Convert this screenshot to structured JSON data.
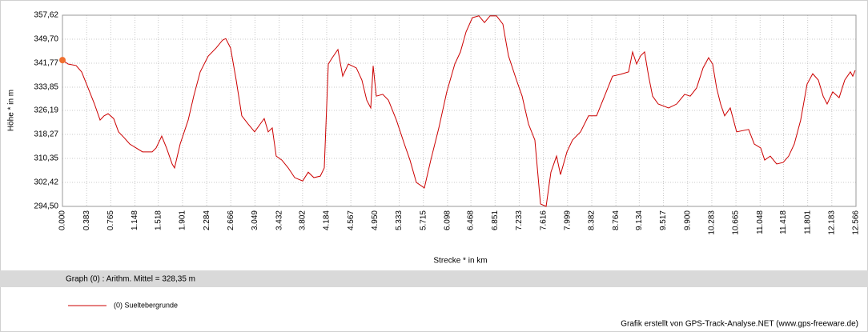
{
  "chart_data": {
    "type": "line",
    "ylabel": "Höhe *  in  m",
    "xlabel": "Strecke *  in  km",
    "annotation": "Graph (0) :  Arithm. Mittel = 328,35 m",
    "credit": "Grafik erstellt von GPS-Track-Analyse.NET (www.gps-freeware.de)",
    "grid": true,
    "legend": "bottom-left",
    "xlim": [
      0,
      12.566
    ],
    "ylim": [
      294.5,
      357.62
    ],
    "yticks": [
      {
        "value": 294.5,
        "label": "294,50"
      },
      {
        "value": 302.42,
        "label": "302,42"
      },
      {
        "value": 310.35,
        "label": "310,35"
      },
      {
        "value": 318.27,
        "label": "318,27"
      },
      {
        "value": 326.19,
        "label": "326,19"
      },
      {
        "value": 333.85,
        "label": "333,85"
      },
      {
        "value": 341.77,
        "label": "341,77"
      },
      {
        "value": 349.7,
        "label": "349,70"
      },
      {
        "value": 357.62,
        "label": "357,62"
      }
    ],
    "xticks": [
      {
        "value": 0,
        "label": "0.000"
      },
      0.383,
      0.765,
      1.148,
      1.518,
      1.901,
      2.284,
      2.666,
      3.049,
      3.432,
      3.802,
      4.184,
      4.567,
      {
        "value": 4.95,
        "label": "4.950"
      },
      5.333,
      5.715,
      6.098,
      6.468,
      6.851,
      7.233,
      7.616,
      7.999,
      8.382,
      8.764,
      9.134,
      9.517,
      {
        "value": 9.9,
        "label": "9.900"
      },
      10.283,
      10.665,
      11.048,
      11.418,
      11.801,
      12.183,
      12.566
    ],
    "x": [
      0,
      0.089,
      0.216,
      0.304,
      0.406,
      0.507,
      0.596,
      0.659,
      0.723,
      0.811,
      0.888,
      0.976,
      1.065,
      1.166,
      1.268,
      1.42,
      1.483,
      1.572,
      1.648,
      1.737,
      1.775,
      1.864,
      1.991,
      2.079,
      2.181,
      2.308,
      2.434,
      2.536,
      2.586,
      2.662,
      2.751,
      2.84,
      2.941,
      3.043,
      3.132,
      3.195,
      3.258,
      3.322,
      3.385,
      3.474,
      3.575,
      3.677,
      3.804,
      3.892,
      3.981,
      4.083,
      4.146,
      4.21,
      4.273,
      4.362,
      4.438,
      4.527,
      4.654,
      4.742,
      4.818,
      4.882,
      4.92,
      4.97,
      5.072,
      5.161,
      5.288,
      5.414,
      5.503,
      5.604,
      5.731,
      5.833,
      5.96,
      6.086,
      6.213,
      6.302,
      6.391,
      6.492,
      6.594,
      6.683,
      6.771,
      6.873,
      6.974,
      7.063,
      7.19,
      7.279,
      7.38,
      7.481,
      7.57,
      7.659,
      7.735,
      7.824,
      7.887,
      7.989,
      8.077,
      8.204,
      8.331,
      8.458,
      8.584,
      8.711,
      8.838,
      8.965,
      9.028,
      9.092,
      9.155,
      9.218,
      9.282,
      9.345,
      9.434,
      9.599,
      9.726,
      9.852,
      9.941,
      10.042,
      10.144,
      10.232,
      10.296,
      10.359,
      10.422,
      10.486,
      10.575,
      10.676,
      10.866,
      10.955,
      11.057,
      11.12,
      11.209,
      11.31,
      11.412,
      11.5,
      11.589,
      11.69,
      11.792,
      11.881,
      11.97,
      12.046,
      12.109,
      12.198,
      12.299,
      12.388,
      12.477,
      12.515,
      12.553
    ],
    "series": [
      {
        "name": "(0) Sueltebergrunde",
        "color": "#cc0000",
        "marker_color": "#f07030",
        "values": [
          342.8,
          341.5,
          341.0,
          338.9,
          333.6,
          328.3,
          323.0,
          324.4,
          325.1,
          323.5,
          319.1,
          317.2,
          315.1,
          313.8,
          312.5,
          312.5,
          313.8,
          317.7,
          313.8,
          308.5,
          307.2,
          315.1,
          323.0,
          330.9,
          338.9,
          344.1,
          346.8,
          349.4,
          349.9,
          346.8,
          336.2,
          324.4,
          321.7,
          319.1,
          321.7,
          323.5,
          319.1,
          320.4,
          311.1,
          309.8,
          307.2,
          304.0,
          302.9,
          305.8,
          304.0,
          304.5,
          307.2,
          341.5,
          343.6,
          346.3,
          337.5,
          341.5,
          340.2,
          336.2,
          329.6,
          327.0,
          340.9,
          330.9,
          331.5,
          329.6,
          323.0,
          315.1,
          309.8,
          302.4,
          300.6,
          309.8,
          320.4,
          332.3,
          341.5,
          345.5,
          352.1,
          356.8,
          357.4,
          355.2,
          357.4,
          357.4,
          354.7,
          344.2,
          336.2,
          330.9,
          321.7,
          316.4,
          295.3,
          294.5,
          305.8,
          311.1,
          305.0,
          312.5,
          316.4,
          319.1,
          324.4,
          324.4,
          330.9,
          337.5,
          338.1,
          338.9,
          345.5,
          341.5,
          344.2,
          345.5,
          337.5,
          330.9,
          328.3,
          327.0,
          328.3,
          331.5,
          330.9,
          333.6,
          340.2,
          343.6,
          341.5,
          333.6,
          328.3,
          324.4,
          327.0,
          319.1,
          319.9,
          315.1,
          313.8,
          309.8,
          311.1,
          308.5,
          309.0,
          311.1,
          315.1,
          323.0,
          334.9,
          338.3,
          336.2,
          330.9,
          328.3,
          332.3,
          330.4,
          336.2,
          338.9,
          337.5,
          339.4
        ]
      }
    ]
  }
}
